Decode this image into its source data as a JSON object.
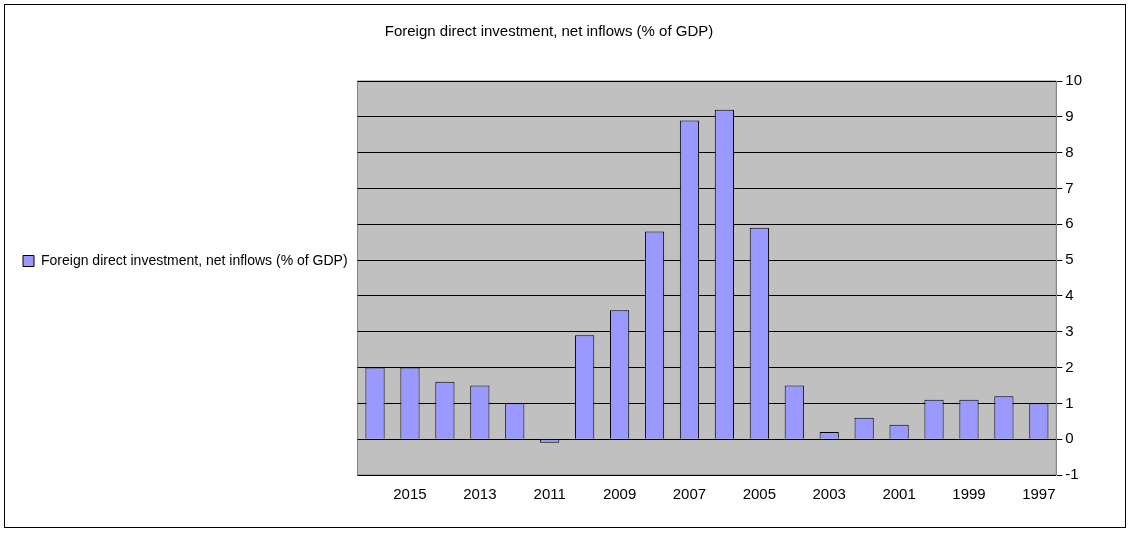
{
  "chart_data": {
    "type": "bar",
    "title": "Foreign direct investment, net inflows (% of GDP)",
    "categories": [
      null,
      "2015",
      null,
      "2013",
      null,
      "2011",
      null,
      "2009",
      null,
      "2007",
      null,
      "2005",
      null,
      "2003",
      null,
      "2001",
      null,
      "1999",
      null,
      "1997"
    ],
    "series": [
      {
        "name": "Foreign direct investment, net inflows (% of GDP)",
        "color": "#9999ff",
        "values": [
          2.0,
          2.0,
          1.6,
          1.5,
          1.0,
          -0.1,
          2.9,
          3.6,
          5.8,
          8.9,
          9.2,
          5.9,
          1.5,
          0.2,
          0.6,
          0.4,
          1.1,
          1.1,
          1.2,
          1.0
        ]
      }
    ],
    "ylim": [
      -1,
      10
    ],
    "yticks": [
      -1,
      0,
      1,
      2,
      3,
      4,
      5,
      6,
      7,
      8,
      9,
      10
    ],
    "grid": "y",
    "legend": "left"
  }
}
